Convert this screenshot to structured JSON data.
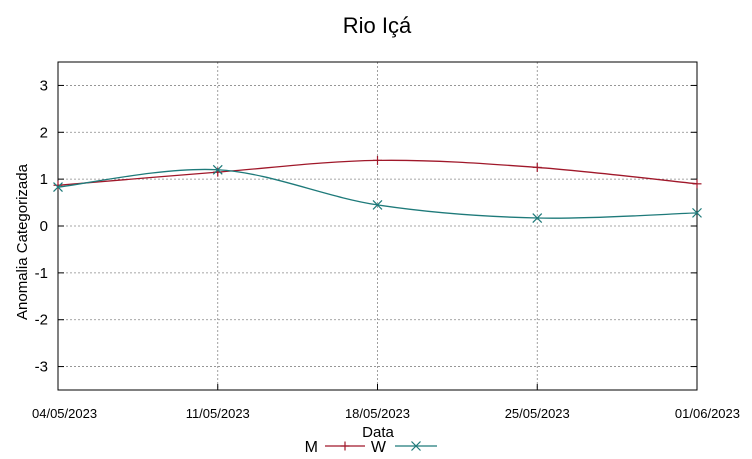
{
  "chart_data": {
    "type": "line",
    "title": "Rio Içá",
    "xlabel": "Data",
    "ylabel": "Anomalia Categorizada",
    "categories": [
      "04/05/2023",
      "11/05/2023",
      "18/05/2023",
      "25/05/2023",
      "01/06/2023"
    ],
    "ylim": [
      -3.5,
      3.5
    ],
    "yticks": [
      -3,
      -2,
      -1,
      0,
      1,
      2,
      3
    ],
    "grid": true,
    "legend": "bottom-center",
    "series": [
      {
        "name": "M",
        "color": "#a0182a",
        "marker": "plus",
        "values": [
          0.87,
          1.15,
          1.4,
          1.25,
          0.9
        ]
      },
      {
        "name": "W",
        "color": "#1e7a7a",
        "marker": "x",
        "values": [
          0.83,
          1.2,
          0.45,
          0.17,
          0.28
        ]
      }
    ]
  }
}
